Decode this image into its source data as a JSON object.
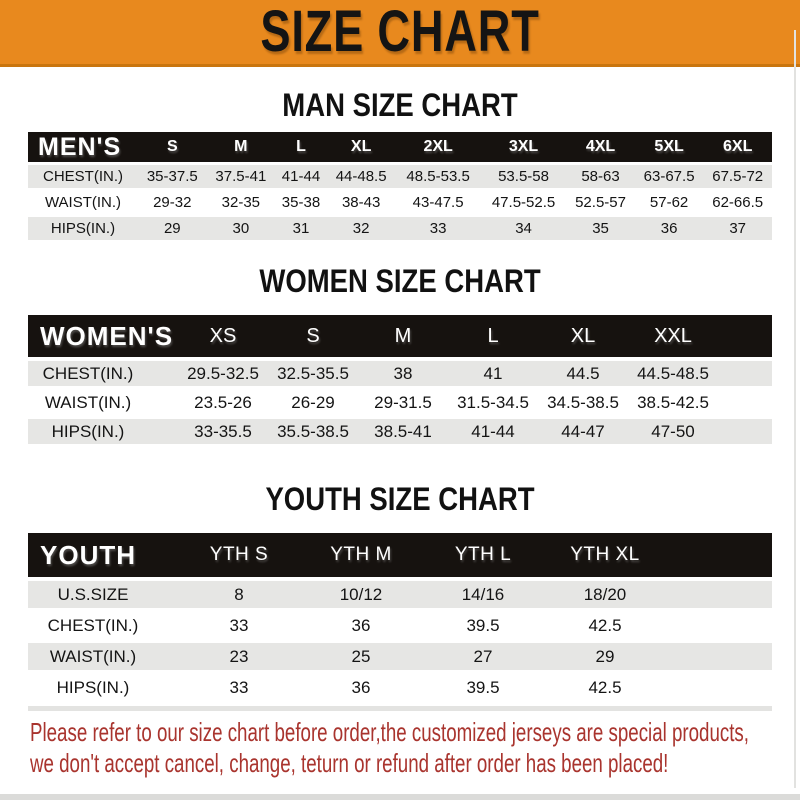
{
  "banner": {
    "title": "SIZE CHART"
  },
  "sections": [
    {
      "id": "men",
      "title": "MAN SIZE CHART",
      "corner_label": "MEN'S",
      "sizes": [
        "S",
        "M",
        "L",
        "XL",
        "2XL",
        "3XL",
        "4XL",
        "5XL",
        "6XL"
      ],
      "rows": [
        {
          "label": "CHEST(IN.)",
          "values": [
            "35-37.5",
            "37.5-41",
            "41-44",
            "44-48.5",
            "48.5-53.5",
            "53.5-58",
            "58-63",
            "63-67.5",
            "67.5-72"
          ]
        },
        {
          "label": "WAIST(IN.)",
          "values": [
            "29-32",
            "32-35",
            "35-38",
            "38-43",
            "43-47.5",
            "47.5-52.5",
            "52.5-57",
            "57-62",
            "62-66.5"
          ]
        },
        {
          "label": "HIPS(IN.)",
          "values": [
            "29",
            "30",
            "31",
            "32",
            "33",
            "34",
            "35",
            "36",
            "37"
          ]
        }
      ]
    },
    {
      "id": "women",
      "title": "WOMEN SIZE CHART",
      "corner_label": "WOMEN'S",
      "sizes": [
        "XS",
        "S",
        "M",
        "L",
        "XL",
        "XXL"
      ],
      "rows": [
        {
          "label": "CHEST(IN.)",
          "values": [
            "29.5-32.5",
            "32.5-35.5",
            "38",
            "41",
            "44.5",
            "44.5-48.5"
          ]
        },
        {
          "label": "WAIST(IN.)",
          "values": [
            "23.5-26",
            "26-29",
            "29-31.5",
            "31.5-34.5",
            "34.5-38.5",
            "38.5-42.5"
          ]
        },
        {
          "label": "HIPS(IN.)",
          "values": [
            "33-35.5",
            "35.5-38.5",
            "38.5-41",
            "41-44",
            "44-47",
            "47-50"
          ]
        }
      ]
    },
    {
      "id": "youth",
      "title": "YOUTH SIZE CHART",
      "corner_label": "YOUTH",
      "sizes": [
        "YTH S",
        "YTH M",
        "YTH L",
        "YTH XL"
      ],
      "rows": [
        {
          "label": "U.S.SIZE",
          "values": [
            "8",
            "10/12",
            "14/16",
            "18/20"
          ]
        },
        {
          "label": "CHEST(IN.)",
          "values": [
            "33",
            "36",
            "39.5",
            "42.5"
          ]
        },
        {
          "label": "WAIST(IN.)",
          "values": [
            "23",
            "25",
            "27",
            "29"
          ]
        },
        {
          "label": "HIPS(IN.)",
          "values": [
            "33",
            "36",
            "39.5",
            "42.5"
          ]
        }
      ]
    }
  ],
  "footer": {
    "line1": "Please refer to our size chart before order,the customized jerseys are special products,",
    "line2": "we don't accept cancel, change, teturn or refund after order has been placed!"
  },
  "colors": {
    "banner_orange": "#E8891E",
    "banner_border": "#C9750E",
    "bar_black": "#16120F",
    "row_gray": "#E6E6E4",
    "notice_red": "#A9342E"
  }
}
